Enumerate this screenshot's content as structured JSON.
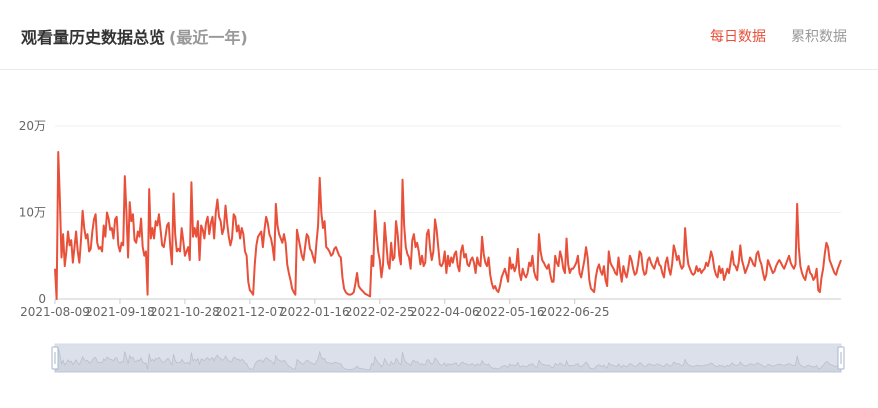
{
  "header": {
    "title": "观看量历史数据总览",
    "subtitle": "(最近一年)",
    "tabs": [
      {
        "label": "每日数据",
        "active": true
      },
      {
        "label": "累积数据",
        "active": false
      }
    ]
  },
  "colors": {
    "line": "#e8503a",
    "active_tab": "#e8503a",
    "inactive_tab": "#999999",
    "slider_fill": "#d7dde8"
  },
  "chart_data": {
    "type": "line",
    "title": "",
    "xlabel": "",
    "ylabel": "",
    "ylim": [
      0,
      200000
    ],
    "y_ticks": [
      {
        "value": 0,
        "label": "0"
      },
      {
        "value": 100000,
        "label": "10万"
      },
      {
        "value": 200000,
        "label": "20万"
      }
    ],
    "x_tick_labels": [
      "2021-08-09",
      "2021-09-18",
      "2021-10-28",
      "2021-12-07",
      "2022-01-16",
      "2022-02-25",
      "2022-04-06",
      "2022-05-16",
      "2022-06-25"
    ],
    "grid": true,
    "legend": "none",
    "x_start": "2021-08-09",
    "series": [
      {
        "name": "",
        "x_interval_days": 1,
        "values": [
          35000,
          0,
          170000,
          115000,
          48000,
          75000,
          38000,
          55000,
          78000,
          62000,
          68000,
          42000,
          60000,
          78000,
          55000,
          42000,
          68000,
          102000,
          82000,
          70000,
          75000,
          55000,
          58000,
          78000,
          92000,
          98000,
          65000,
          58000,
          60000,
          55000,
          85000,
          72000,
          100000,
          93000,
          80000,
          82000,
          70000,
          92000,
          95000,
          62000,
          55000,
          65000,
          62000,
          142000,
          100000,
          48000,
          112000,
          90000,
          98000,
          68000,
          65000,
          78000,
          72000,
          93000,
          60000,
          50000,
          55000,
          5000,
          127000,
          70000,
          82000,
          70000,
          90000,
          85000,
          98000,
          80000,
          62000,
          60000,
          72000,
          85000,
          88000,
          60000,
          40000,
          122000,
          75000,
          55000,
          58000,
          55000,
          82000,
          67000,
          50000,
          55000,
          60000,
          45000,
          135000,
          72000,
          82000,
          72000,
          90000,
          45000,
          85000,
          80000,
          70000,
          88000,
          95000,
          75000,
          88000,
          95000,
          70000,
          100000,
          115000,
          95000,
          90000,
          75000,
          82000,
          108000,
          88000,
          72000,
          62000,
          70000,
          98000,
          95000,
          78000,
          85000,
          70000,
          82000,
          75000,
          55000,
          50000,
          20000,
          10000,
          8000,
          5000,
          40000,
          62000,
          72000,
          75000,
          78000,
          60000,
          80000,
          95000,
          88000,
          75000,
          70000,
          60000,
          45000,
          110000,
          85000,
          75000,
          70000,
          65000,
          75000,
          65000,
          40000,
          30000,
          22000,
          12000,
          8000,
          5000,
          80000,
          70000,
          60000,
          50000,
          45000,
          60000,
          75000,
          72000,
          58000,
          55000,
          48000,
          42000,
          65000,
          85000,
          140000,
          100000,
          82000,
          90000,
          60000,
          58000,
          55000,
          50000,
          52000,
          58000,
          60000,
          55000,
          50000,
          48000,
          25000,
          12000,
          8000,
          6000,
          5000,
          5000,
          6000,
          8000,
          18000,
          30000,
          15000,
          12000,
          10000,
          8000,
          6000,
          5000,
          4000,
          3000,
          50000,
          38000,
          102000,
          75000,
          55000,
          45000,
          25000,
          40000,
          88000,
          65000,
          42000,
          35000,
          65000,
          45000,
          48000,
          90000,
          75000,
          50000,
          40000,
          138000,
          85000,
          60000,
          52000,
          48000,
          35000,
          68000,
          75000,
          60000,
          65000,
          55000,
          40000,
          50000,
          38000,
          42000,
          75000,
          80000,
          58000,
          45000,
          55000,
          92000,
          80000,
          60000,
          40000,
          38000,
          42000,
          55000,
          30000,
          50000,
          38000,
          48000,
          42000,
          52000,
          55000,
          38000,
          32000,
          55000,
          62000,
          48000,
          52000,
          40000,
          38000,
          45000,
          48000,
          42000,
          30000,
          48000,
          40000,
          38000,
          72000,
          52000,
          42000,
          38000,
          48000,
          28000,
          18000,
          12000,
          15000,
          10000,
          8000,
          15000,
          25000,
          30000,
          35000,
          28000,
          20000,
          48000,
          35000,
          40000,
          32000,
          38000,
          58000,
          30000,
          22000,
          35000,
          28000,
          25000,
          30000,
          42000,
          38000,
          50000,
          32000,
          25000,
          22000,
          75000,
          55000,
          45000,
          42000,
          38000,
          35000,
          40000,
          28000,
          20000,
          20000,
          50000,
          42000,
          38000,
          55000,
          48000,
          35000,
          30000,
          70000,
          40000,
          30000,
          35000,
          35000,
          38000,
          42000,
          50000,
          30000,
          25000,
          35000,
          45000,
          60000,
          48000,
          22000,
          12000,
          10000,
          8000,
          25000,
          35000,
          40000,
          32000,
          28000,
          38000,
          22000,
          15000,
          55000,
          42000,
          38000,
          35000,
          30000,
          28000,
          48000,
          32000,
          20000,
          38000,
          30000,
          25000,
          35000,
          50000,
          45000,
          35000,
          28000,
          30000,
          40000,
          55000,
          52000,
          35000,
          28000,
          30000,
          45000,
          48000,
          42000,
          38000,
          35000,
          42000,
          48000,
          40000,
          38000,
          30000,
          25000,
          42000,
          48000,
          35000,
          28000,
          40000,
          62000,
          55000,
          45000,
          50000,
          40000,
          35000,
          38000,
          82000,
          55000,
          40000,
          35000,
          30000,
          28000,
          30000,
          38000,
          32000,
          35000,
          30000,
          33000,
          35000,
          42000,
          38000,
          45000,
          55000,
          48000,
          35000,
          28000,
          25000,
          38000,
          30000,
          35000,
          22000,
          28000,
          35000,
          30000,
          42000,
          55000,
          40000,
          38000,
          33000,
          42000,
          62000,
          45000,
          38000,
          30000,
          35000,
          40000,
          48000,
          45000,
          40000,
          38000,
          52000,
          55000,
          45000,
          40000,
          30000,
          22000,
          28000,
          45000,
          40000,
          35000,
          30000,
          32000,
          38000,
          42000,
          45000,
          42000,
          38000,
          35000,
          40000,
          45000,
          50000,
          42000,
          38000,
          35000,
          40000,
          110000,
          60000,
          38000,
          30000,
          25000,
          22000,
          32000,
          38000,
          30000,
          28000,
          22000,
          25000,
          35000,
          10000,
          8000,
          25000,
          35000,
          52000,
          65000,
          60000,
          45000,
          40000,
          35000,
          30000,
          28000,
          35000,
          40000,
          45000
        ]
      }
    ],
    "minimap": {
      "range_start_percent": 0,
      "range_end_percent": 100
    }
  }
}
